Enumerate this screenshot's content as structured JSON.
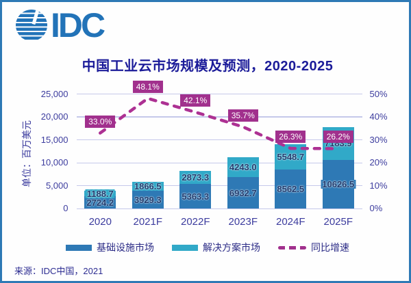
{
  "brand": {
    "logo_text": "IDC"
  },
  "title": "中国工业云市场规模及预测，2020-2025",
  "source": "来源：IDC中国，2021",
  "y_axis": {
    "unit_label": "单位：百万美元",
    "tick_labels": [
      "0",
      "5,000",
      "10,000",
      "15,000",
      "20,000",
      "25,000"
    ],
    "tick_values": [
      0,
      5000,
      10000,
      15000,
      20000,
      25000
    ]
  },
  "y2_axis": {
    "tick_labels": [
      "0%",
      "10%",
      "20%",
      "30%",
      "40%",
      "50%"
    ],
    "tick_values": [
      0,
      10,
      20,
      30,
      40,
      50
    ]
  },
  "legend": [
    {
      "label": "基础设施市场",
      "type": "bar",
      "color": "#2e79b5"
    },
    {
      "label": "解决方案市场",
      "type": "bar",
      "color": "#31a9c8"
    },
    {
      "label": "同比增速",
      "type": "line",
      "color": "#a1308d"
    }
  ],
  "colors": {
    "infrastructure_bar": "#2e79b5",
    "solution_bar": "#31a9c8",
    "growth_line": "#ad3193",
    "growth_label_bg": "#a1308d",
    "title_text": "#1b1b99",
    "axis_text": "#3c3c9e",
    "bar_value_text": "#1e3a6e",
    "gridline": "#c5c8ea",
    "frame_border": "#2e79b5",
    "logo_blue": "#2273b8"
  },
  "chart_data": {
    "type": "bar",
    "stacked": true,
    "categories": [
      "2020",
      "2021F",
      "2022F",
      "2023F",
      "2024F",
      "2025F"
    ],
    "series": [
      {
        "name": "基础设施市场",
        "type": "bar",
        "axis": "left",
        "color": "#2e79b5",
        "values": [
          2724.2,
          3929.3,
          5363.3,
          6932.7,
          8562.5,
          10626.5
        ]
      },
      {
        "name": "解决方案市场",
        "type": "bar",
        "axis": "left",
        "color": "#31a9c8",
        "values": [
          1188.7,
          1866.5,
          2873.3,
          4243.0,
          5548.7,
          7183.9
        ]
      },
      {
        "name": "同比增速",
        "type": "line",
        "axis": "right",
        "color": "#ad3193",
        "values": [
          33.0,
          48.1,
          42.1,
          35.7,
          26.3,
          26.2
        ],
        "labels": [
          "33.0%",
          "48.1%",
          "42.1%",
          "35.7%",
          "26.3%",
          "26.2%"
        ]
      }
    ],
    "title": "中国工业云市场规模及预测，2020-2025",
    "xlabel": "",
    "ylabel": "单位：百万美元",
    "ylim": [
      0,
      25000
    ],
    "y2lim": [
      0,
      50
    ],
    "grid": true,
    "legend_position": "bottom"
  }
}
